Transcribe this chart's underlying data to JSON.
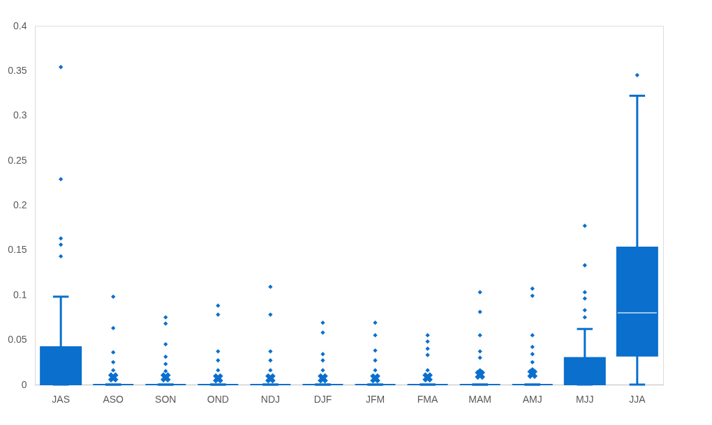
{
  "chart_data": {
    "type": "box",
    "categories": [
      "JAS",
      "ASO",
      "SON",
      "OND",
      "NDJ",
      "DJF",
      "JFM",
      "FMA",
      "MAM",
      "AMJ",
      "MJJ",
      "JJA"
    ],
    "color": "#0a6fcd",
    "boxes": [
      {
        "low": 0,
        "q1": 0,
        "median": 0,
        "q3": 0.042,
        "high": 0.098,
        "mean": 0.019,
        "outliers": [
          0.354,
          0.229,
          0.163,
          0.156,
          0.143
        ]
      },
      {
        "low": 0,
        "q1": 0,
        "median": 0,
        "q3": 0,
        "high": 0,
        "mean": 0.008,
        "outliers": [
          0.098,
          0.063,
          0.036,
          0.025,
          0.016
        ]
      },
      {
        "low": 0,
        "q1": 0,
        "median": 0,
        "q3": 0,
        "high": 0,
        "mean": 0.008,
        "outliers": [
          0.075,
          0.068,
          0.045,
          0.031,
          0.023,
          0.015
        ]
      },
      {
        "low": 0,
        "q1": 0,
        "median": 0,
        "q3": 0,
        "high": 0,
        "mean": 0.007,
        "outliers": [
          0.088,
          0.078,
          0.037,
          0.027,
          0.016
        ]
      },
      {
        "low": 0,
        "q1": 0,
        "median": 0,
        "q3": 0,
        "high": 0,
        "mean": 0.007,
        "outliers": [
          0.109,
          0.078,
          0.037,
          0.027,
          0.016
        ]
      },
      {
        "low": 0,
        "q1": 0,
        "median": 0,
        "q3": 0,
        "high": 0,
        "mean": 0.007,
        "outliers": [
          0.069,
          0.058,
          0.034,
          0.027,
          0.016
        ]
      },
      {
        "low": 0,
        "q1": 0,
        "median": 0,
        "q3": 0,
        "high": 0,
        "mean": 0.007,
        "outliers": [
          0.069,
          0.055,
          0.038,
          0.027,
          0.016
        ]
      },
      {
        "low": 0,
        "q1": 0,
        "median": 0,
        "q3": 0,
        "high": 0,
        "mean": 0.008,
        "outliers": [
          0.055,
          0.048,
          0.04,
          0.033,
          0.016
        ]
      },
      {
        "low": 0,
        "q1": 0,
        "median": 0,
        "q3": 0,
        "high": 0,
        "mean": 0.011,
        "outliers": [
          0.103,
          0.081,
          0.055,
          0.037,
          0.03,
          0.016
        ]
      },
      {
        "low": 0,
        "q1": 0,
        "median": 0,
        "q3": 0,
        "high": 0,
        "mean": 0.012,
        "outliers": [
          0.107,
          0.099,
          0.055,
          0.042,
          0.034,
          0.025,
          0.017
        ]
      },
      {
        "low": 0,
        "q1": 0,
        "median": 0,
        "q3": 0.03,
        "high": 0.062,
        "outliers": [
          0.177,
          0.133,
          0.103,
          0.096,
          0.083,
          0.075
        ]
      },
      {
        "low": 0,
        "q1": 0.032,
        "median": 0.08,
        "q3": 0.153,
        "high": 0.322,
        "outliers": [
          0.345
        ]
      }
    ],
    "ylim": [
      0,
      0.4
    ],
    "yticks": [
      0,
      0.05,
      0.1,
      0.15,
      0.2,
      0.25,
      0.3,
      0.35,
      0.4
    ],
    "grid": false
  }
}
